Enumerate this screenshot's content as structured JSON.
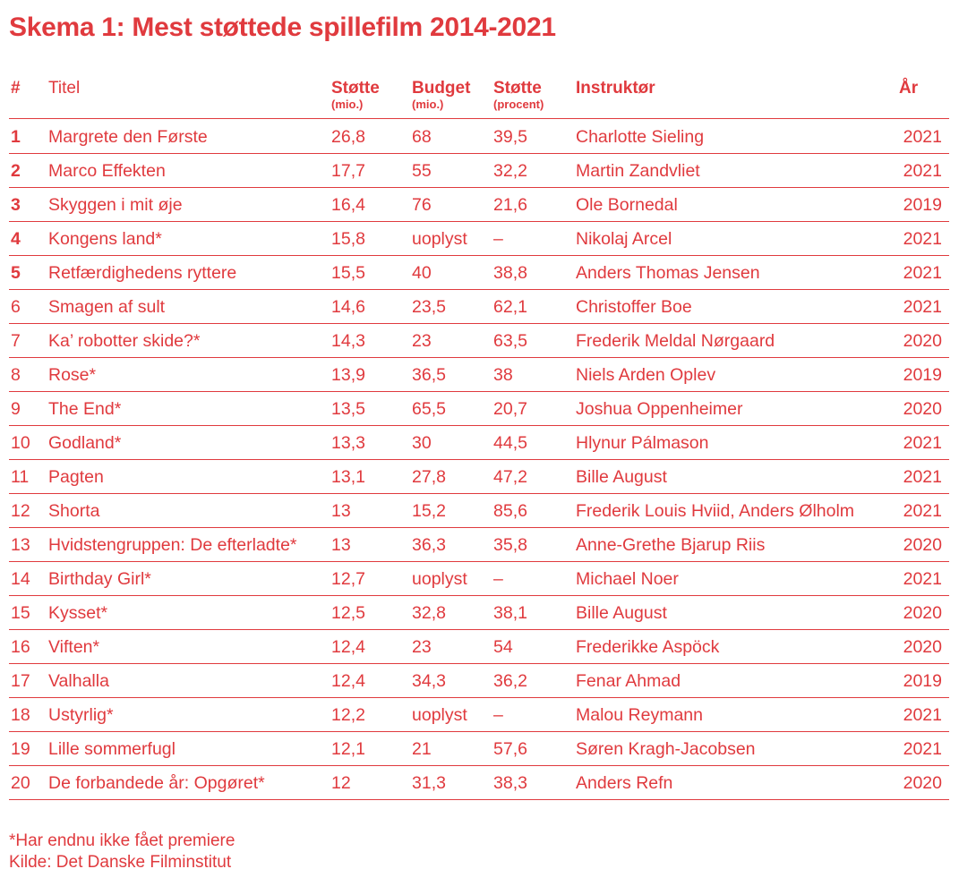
{
  "title": "Skema 1: Mest støttede spillefilm 2014-2021",
  "columns": {
    "num": "#",
    "title": "Titel",
    "support": "Støtte",
    "support_sub": "(mio.)",
    "budget": "Budget",
    "budget_sub": "(mio.)",
    "pct": "Støtte",
    "pct_sub": "(procent)",
    "director": "Instruktør",
    "year": "År"
  },
  "rows": [
    {
      "num": "1",
      "title": "Margrete den Første",
      "support": "26,8",
      "budget": "68",
      "pct": "39,5",
      "director": "Charlotte Sieling",
      "year": "2021"
    },
    {
      "num": "2",
      "title": "Marco Effekten",
      "support": "17,7",
      "budget": "55",
      "pct": "32,2",
      "director": "Martin Zandvliet",
      "year": "2021"
    },
    {
      "num": "3",
      "title": "Skyggen i mit øje",
      "support": "16,4",
      "budget": "76",
      "pct": "21,6",
      "director": "Ole Bornedal",
      "year": "2019"
    },
    {
      "num": "4",
      "title": "Kongens land*",
      "support": "15,8",
      "budget": "uoplyst",
      "pct": "–",
      "director": "Nikolaj Arcel",
      "year": "2021"
    },
    {
      "num": "5",
      "title": "Retfærdighedens ryttere",
      "support": "15,5",
      "budget": "40",
      "pct": "38,8",
      "director": "Anders Thomas Jensen",
      "year": "2021"
    },
    {
      "num": "6",
      "title": "Smagen af sult",
      "support": "14,6",
      "budget": "23,5",
      "pct": "62,1",
      "director": "Christoffer Boe",
      "year": "2021"
    },
    {
      "num": "7",
      "title": "Ka’ robotter skide?*",
      "support": "14,3",
      "budget": "23",
      "pct": "63,5",
      "director": "Frederik Meldal Nørgaard",
      "year": "2020"
    },
    {
      "num": "8",
      "title": "Rose*",
      "support": "13,9",
      "budget": "36,5",
      "pct": "38",
      "director": "Niels Arden Oplev",
      "year": "2019"
    },
    {
      "num": "9",
      "title": "The End*",
      "support": "13,5",
      "budget": "65,5",
      "pct": "20,7",
      "director": "Joshua Oppenheimer",
      "year": "2020"
    },
    {
      "num": "10",
      "title": "Godland*",
      "support": "13,3",
      "budget": "30",
      "pct": "44,5",
      "director": "Hlynur Pálmason",
      "year": "2021"
    },
    {
      "num": "11",
      "title": "Pagten",
      "support": "13,1",
      "budget": "27,8",
      "pct": "47,2",
      "director": "Bille August",
      "year": "2021"
    },
    {
      "num": "12",
      "title": "Shorta",
      "support": "13",
      "budget": "15,2",
      "pct": "85,6",
      "director": "Frederik Louis Hviid, Anders Ølholm",
      "year": "2021"
    },
    {
      "num": "13",
      "title": "Hvidstengruppen: De efterladte*",
      "support": "13",
      "budget": "36,3",
      "pct": "35,8",
      "director": "Anne-Grethe Bjarup Riis",
      "year": "2020"
    },
    {
      "num": "14",
      "title": "Birthday Girl*",
      "support": "12,7",
      "budget": "uoplyst",
      "pct": "–",
      "director": "Michael Noer",
      "year": "2021"
    },
    {
      "num": "15",
      "title": "Kysset*",
      "support": "12,5",
      "budget": "32,8",
      "pct": "38,1",
      "director": "Bille August",
      "year": "2020"
    },
    {
      "num": "16",
      "title": "Viften*",
      "support": "12,4",
      "budget": "23",
      "pct": "54",
      "director": "Frederikke Aspöck",
      "year": "2020"
    },
    {
      "num": "17",
      "title": "Valhalla",
      "support": "12,4",
      "budget": "34,3",
      "pct": "36,2",
      "director": "Fenar Ahmad",
      "year": "2019"
    },
    {
      "num": "18",
      "title": "Ustyrlig*",
      "support": "12,2",
      "budget": "uoplyst",
      "pct": "–",
      "director": "Malou Reymann",
      "year": "2021"
    },
    {
      "num": "19",
      "title": "Lille sommerfugl",
      "support": "12,1",
      "budget": "21",
      "pct": "57,6",
      "director": "Søren Kragh-Jacobsen",
      "year": "2021"
    },
    {
      "num": "20",
      "title": "De forbandede år: Opgøret*",
      "support": "12",
      "budget": "31,3",
      "pct": "38,3",
      "director": "Anders Refn",
      "year": "2020"
    }
  ],
  "footnote": "*Har endnu ikke fået premiere",
  "source": "Kilde: Det Danske Filminstitut",
  "accent_color": "#e03a3e"
}
